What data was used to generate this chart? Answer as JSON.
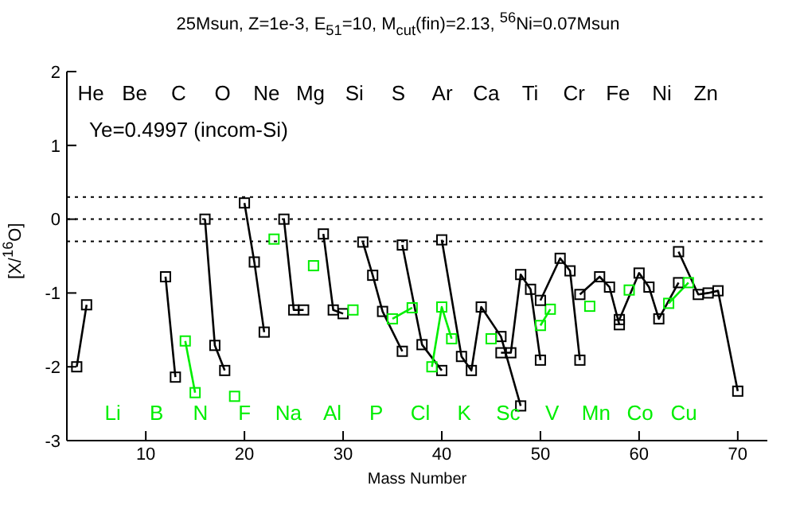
{
  "chart_data": {
    "type": "line",
    "title": "25Msun, Z=1e-3, E$_{51}$=10, M$_{cut}$(fin)=2.13, $^{56}$Ni=0.07Msun",
    "xlabel": "Mass Number",
    "ylabel": "[X/$^{16}$O]",
    "annotations": [
      "Ye=0.4997 (incom-Si)",
      "He",
      "Li",
      "Be",
      "B",
      "C",
      "N",
      "O",
      "F",
      "Ne",
      "Na",
      "Mg",
      "Al",
      "Si",
      "P",
      "S",
      "Cl",
      "Ar",
      "K",
      "Ca",
      "Sc",
      "Ti",
      "V",
      "Cr",
      "Mn",
      "Fe",
      "Co",
      "Ni",
      "Cu",
      "Zn"
    ],
    "xlim": [
      2,
      73
    ],
    "xticks": [
      10,
      20,
      30,
      40,
      50,
      60,
      70
    ],
    "ylim": [
      -3,
      2
    ],
    "yticks": [
      -3,
      -2,
      -1,
      0,
      1,
      2
    ],
    "marker": "square",
    "line_style": "solid",
    "grid": false,
    "legend": false,
    "ref_lines": [
      {
        "axis": "y",
        "value": 0.3,
        "line_style": "dotted",
        "color": "#000000"
      },
      {
        "axis": "y",
        "value": 0,
        "line_style": "dotted",
        "color": "#000000"
      },
      {
        "axis": "y",
        "value": -0.3,
        "line_style": "dotted",
        "color": "#000000"
      }
    ],
    "series": [
      {
        "color": "#000000",
        "x": [
          3,
          4
        ],
        "values": [
          -2.0,
          -1.16
        ]
      },
      {
        "color": "#000000",
        "x": [
          12,
          13
        ],
        "values": [
          -0.78,
          -2.14
        ]
      },
      {
        "color": "#00ee00",
        "x": [
          14,
          15
        ],
        "values": [
          -1.65,
          -2.35
        ]
      },
      {
        "color": "#000000",
        "x": [
          16,
          17,
          18
        ],
        "values": [
          0,
          -1.71,
          -2.05
        ]
      },
      {
        "color": "#00ee00",
        "x": [
          19
        ],
        "values": [
          -2.4
        ]
      },
      {
        "color": "#000000",
        "x": [
          20,
          21,
          22
        ],
        "values": [
          0.22,
          -0.58,
          -1.53
        ]
      },
      {
        "color": "#00ee00",
        "x": [
          23
        ],
        "values": [
          -0.27
        ]
      },
      {
        "color": "#000000",
        "x": [
          24,
          25,
          26
        ],
        "values": [
          0,
          -1.23,
          -1.23
        ]
      },
      {
        "color": "#00ee00",
        "x": [
          27
        ],
        "values": [
          -0.63
        ]
      },
      {
        "color": "#000000",
        "x": [
          28,
          29,
          30
        ],
        "values": [
          -0.2,
          -1.23,
          -1.28
        ]
      },
      {
        "color": "#00ee00",
        "x": [
          31
        ],
        "values": [
          -1.23
        ]
      },
      {
        "color": "#000000",
        "x": [
          32,
          33,
          34,
          36
        ],
        "values": [
          -0.31,
          -0.76,
          -1.25,
          -1.79
        ]
      },
      {
        "color": "#00ee00",
        "x": [
          35,
          37
        ],
        "values": [
          -1.35,
          -1.2
        ]
      },
      {
        "color": "#000000",
        "x": [
          36,
          38,
          40
        ],
        "values": [
          -0.35,
          -1.7,
          -2.05
        ]
      },
      {
        "color": "#00ee00",
        "x": [
          39,
          40,
          41
        ],
        "values": [
          -2.0,
          -1.19,
          -1.62
        ]
      },
      {
        "color": "#000000",
        "x": [
          40,
          42,
          43,
          44,
          46,
          48
        ],
        "values": [
          -0.28,
          -1.86,
          -2.05,
          -1.19,
          -1.59,
          -2.53
        ]
      },
      {
        "color": "#00ee00",
        "x": [
          45
        ],
        "values": [
          -1.62
        ]
      },
      {
        "color": "#000000",
        "x": [
          46,
          47,
          48,
          49,
          50
        ],
        "values": [
          -1.81,
          -1.81,
          -0.75,
          -0.95,
          -1.91
        ]
      },
      {
        "color": "#00ee00",
        "x": [
          50,
          51
        ],
        "values": [
          -1.44,
          -1.22
        ]
      },
      {
        "color": "#000000",
        "x": [
          50,
          52,
          53,
          54
        ],
        "values": [
          -1.1,
          -0.53,
          -0.7,
          -1.91
        ]
      },
      {
        "color": "#00ee00",
        "x": [
          55
        ],
        "values": [
          -1.18
        ]
      },
      {
        "color": "#000000",
        "x": [
          54,
          56,
          57,
          58
        ],
        "values": [
          -1.02,
          -0.78,
          -0.92,
          -1.43
        ]
      },
      {
        "color": "#00ee00",
        "x": [
          59
        ],
        "values": [
          -0.96
        ]
      },
      {
        "color": "#000000",
        "x": [
          58,
          60,
          61,
          62,
          64
        ],
        "values": [
          -1.36,
          -0.73,
          -0.92,
          -1.35,
          -0.86
        ]
      },
      {
        "color": "#00ee00",
        "x": [
          63,
          65
        ],
        "values": [
          -1.14,
          -0.86
        ]
      },
      {
        "color": "#000000",
        "x": [
          64,
          66,
          67,
          68,
          70
        ],
        "values": [
          -0.44,
          -1.02,
          -1.0,
          -0.97,
          -2.33
        ]
      }
    ]
  }
}
